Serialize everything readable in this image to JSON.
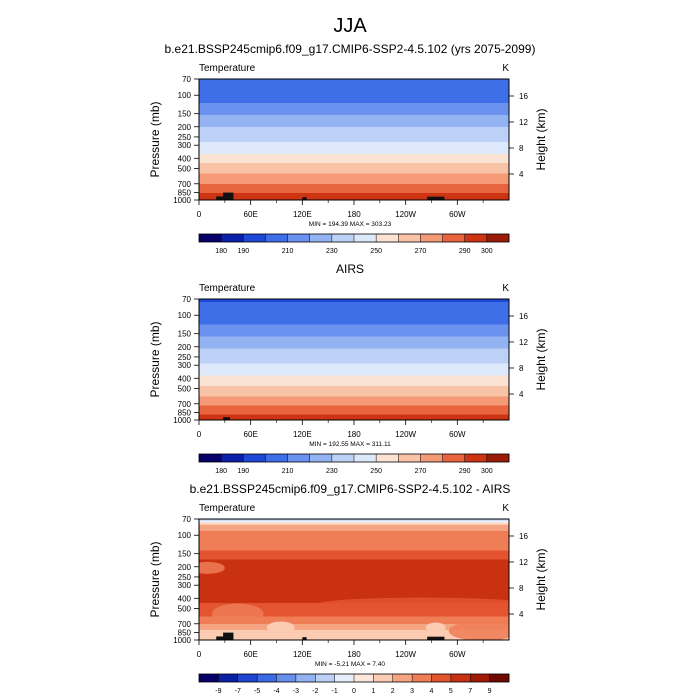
{
  "figure": {
    "season": "JJA",
    "bg": "#ffffff"
  },
  "chart_data": [
    {
      "type": "heatmap",
      "title": "b.e21.BSSP245cmip6.f09_g17.CMIP6-SSP2-4.5.102 (yrs 2075-2099)",
      "left_label": "Temperature",
      "units": "K",
      "ylabel": "Pressure (mb)",
      "ylabel_right": "Height (km)",
      "x_ticks": [
        "0",
        "60E",
        "120E",
        "180",
        "120W",
        "60W"
      ],
      "x_tick_lons": [
        0,
        60,
        120,
        180,
        240,
        300
      ],
      "xlim": [
        0,
        360
      ],
      "y_ticks": [
        "70",
        "100",
        "150",
        "200",
        "250",
        "300",
        "400",
        "500",
        "700",
        "850",
        "1000"
      ],
      "y_tick_values": [
        70,
        100,
        150,
        200,
        250,
        300,
        400,
        500,
        700,
        850,
        1000
      ],
      "ylim": [
        1000,
        70
      ],
      "height_ticks": [
        "16",
        "12",
        "8",
        "4"
      ],
      "height_tick_values": [
        16,
        12,
        8,
        4
      ],
      "stats": "MIN = 194.39  MAX = 303.23",
      "min": 194.39,
      "max": 303.23,
      "profile": [
        [
          70,
          200
        ],
        [
          100,
          205
        ],
        [
          125,
          212
        ],
        [
          150,
          219
        ],
        [
          175,
          224
        ],
        [
          200,
          230
        ],
        [
          250,
          236
        ],
        [
          300,
          242
        ],
        [
          400,
          255
        ],
        [
          500,
          265
        ],
        [
          600,
          273
        ],
        [
          700,
          280
        ],
        [
          850,
          290
        ],
        [
          925,
          295
        ],
        [
          1000,
          299
        ]
      ],
      "terrain": [
        [
          20,
          35,
          925
        ],
        [
          28,
          40,
          850
        ],
        [
          120,
          125,
          940
        ],
        [
          265,
          285,
          930
        ]
      ],
      "scale": "abs",
      "colorbar": {
        "levels": [
          180,
          190,
          200,
          210,
          220,
          230,
          240,
          250,
          260,
          270,
          280,
          290,
          300
        ],
        "labels": [
          "180",
          "190",
          "210",
          "230",
          "250",
          "270",
          "290",
          "300"
        ],
        "label_positions": [
          1,
          2,
          4,
          6,
          8,
          10,
          12,
          13
        ],
        "colors": [
          "#08006a",
          "#0b20a8",
          "#1e48d6",
          "#3f6fe8",
          "#6b92ee",
          "#94b3f2",
          "#bdd1f7",
          "#dde8fa",
          "#fbe3d4",
          "#f9c3a8",
          "#f49a76",
          "#e8643f",
          "#cc3414",
          "#9b1b06"
        ]
      }
    },
    {
      "type": "heatmap",
      "title": "AIRS",
      "left_label": "Temperature",
      "units": "K",
      "ylabel": "Pressure (mb)",
      "ylabel_right": "Height (km)",
      "x_ticks": [
        "0",
        "60E",
        "120E",
        "180",
        "120W",
        "60W"
      ],
      "x_tick_lons": [
        0,
        60,
        120,
        180,
        240,
        300
      ],
      "xlim": [
        0,
        360
      ],
      "y_ticks": [
        "70",
        "100",
        "150",
        "200",
        "250",
        "300",
        "400",
        "500",
        "700",
        "850",
        "1000"
      ],
      "y_tick_values": [
        70,
        100,
        150,
        200,
        250,
        300,
        400,
        500,
        700,
        850,
        1000
      ],
      "ylim": [
        1000,
        70
      ],
      "height_ticks": [
        "16",
        "12",
        "8",
        "4"
      ],
      "height_tick_values": [
        16,
        12,
        8,
        4
      ],
      "stats": "MIN = 192.55  MAX = 311.11",
      "min": 192.55,
      "max": 311.11,
      "profile": [
        [
          70,
          199
        ],
        [
          100,
          204
        ],
        [
          125,
          211
        ],
        [
          150,
          218
        ],
        [
          175,
          223
        ],
        [
          200,
          229
        ],
        [
          250,
          235
        ],
        [
          300,
          241
        ],
        [
          400,
          253
        ],
        [
          500,
          263
        ],
        [
          600,
          271
        ],
        [
          700,
          278
        ],
        [
          850,
          287
        ],
        [
          925,
          292
        ],
        [
          1000,
          297
        ]
      ],
      "terrain": [
        [
          28,
          36,
          940
        ]
      ],
      "scale": "abs",
      "colorbar": {
        "levels": [
          180,
          190,
          200,
          210,
          220,
          230,
          240,
          250,
          260,
          270,
          280,
          290,
          300
        ],
        "labels": [
          "180",
          "190",
          "210",
          "230",
          "250",
          "270",
          "290",
          "300"
        ],
        "label_positions": [
          1,
          2,
          4,
          6,
          8,
          10,
          12,
          13
        ],
        "colors": [
          "#08006a",
          "#0b20a8",
          "#1e48d6",
          "#3f6fe8",
          "#6b92ee",
          "#94b3f2",
          "#bdd1f7",
          "#dde8fa",
          "#fbe3d4",
          "#f9c3a8",
          "#f49a76",
          "#e8643f",
          "#cc3414",
          "#9b1b06"
        ]
      }
    },
    {
      "type": "heatmap",
      "title": "b.e21.BSSP245cmip6.f09_g17.CMIP6-SSP2-4.5.102 - AIRS",
      "left_label": "Temperature",
      "units": "K",
      "ylabel": "Pressure (mb)",
      "ylabel_right": "Height (km)",
      "x_ticks": [
        "0",
        "60E",
        "120E",
        "180",
        "120W",
        "60W"
      ],
      "x_tick_lons": [
        0,
        60,
        120,
        180,
        240,
        300
      ],
      "xlim": [
        0,
        360
      ],
      "y_ticks": [
        "70",
        "100",
        "150",
        "200",
        "250",
        "300",
        "400",
        "500",
        "700",
        "850",
        "1000"
      ],
      "y_tick_values": [
        70,
        100,
        150,
        200,
        250,
        300,
        400,
        500,
        700,
        850,
        1000
      ],
      "ylim": [
        1000,
        70
      ],
      "height_ticks": [
        "16",
        "12",
        "8",
        "4"
      ],
      "height_tick_values": [
        16,
        12,
        8,
        4
      ],
      "stats": "MIN = -5.21  MAX =  7.40",
      "min": -5.21,
      "max": 7.4,
      "profile": [
        [
          70,
          -2
        ],
        [
          75,
          0
        ],
        [
          80,
          2
        ],
        [
          90,
          3
        ],
        [
          100,
          3.5
        ],
        [
          125,
          3
        ],
        [
          150,
          4.5
        ],
        [
          175,
          5.2
        ],
        [
          200,
          5.5
        ],
        [
          300,
          5.6
        ],
        [
          400,
          5.4
        ],
        [
          500,
          4.5
        ],
        [
          600,
          4
        ],
        [
          700,
          3
        ],
        [
          800,
          2
        ],
        [
          900,
          1.5
        ],
        [
          1000,
          2
        ]
      ],
      "terrain": [
        [
          20,
          35,
          925
        ],
        [
          28,
          40,
          850
        ],
        [
          120,
          125,
          940
        ],
        [
          265,
          285,
          930
        ]
      ],
      "scale": "diff",
      "colorbar": {
        "levels": [
          -9,
          -7,
          -5,
          -4,
          -3,
          -2,
          -1,
          0,
          1,
          2,
          3,
          4,
          5,
          7,
          9
        ],
        "labels": [
          "-9",
          "-7",
          "-5",
          "-4",
          "-3",
          "-2",
          "-1",
          "0",
          "1",
          "2",
          "3",
          "4",
          "5",
          "7",
          "9"
        ],
        "label_positions": [
          1,
          2,
          3,
          4,
          5,
          6,
          7,
          8,
          9,
          10,
          11,
          12,
          13,
          14,
          15
        ],
        "colors": [
          "#08006a",
          "#0b1fa3",
          "#1e46d1",
          "#3a6ae5",
          "#6790ec",
          "#92b2f1",
          "#bcd0f6",
          "#e6eefb",
          "#fde6da",
          "#fbcbb2",
          "#f6a583",
          "#ef7d56",
          "#e4552f",
          "#c93111",
          "#a01a06",
          "#6e0a02"
        ]
      }
    }
  ]
}
